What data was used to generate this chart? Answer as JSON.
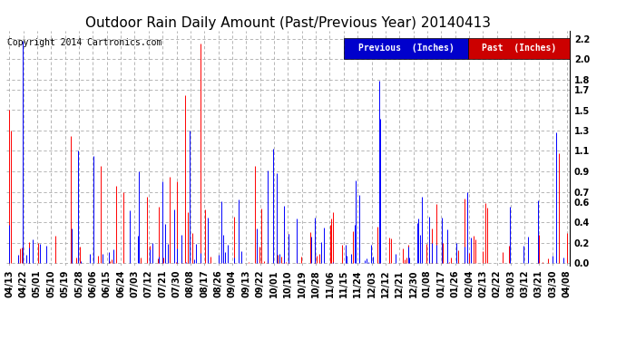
{
  "title": "Outdoor Rain Daily Amount (Past/Previous Year) 20140413",
  "copyright": "Copyright 2014 Cartronics.com",
  "legend": [
    "Previous  (Inches)",
    "Past  (Inches)"
  ],
  "legend_colors": [
    "#0000ff",
    "#ff0000"
  ],
  "legend_bg_prev": "#0000cc",
  "legend_bg_past": "#cc0000",
  "yticks": [
    0.0,
    0.2,
    0.4,
    0.6,
    0.7,
    0.9,
    1.1,
    1.3,
    1.5,
    1.7,
    1.8,
    2.0,
    2.2
  ],
  "ymax": 2.28,
  "ymin": -0.02,
  "xtick_labels": [
    "04/13",
    "04/22",
    "05/01",
    "05/10",
    "05/19",
    "05/28",
    "06/06",
    "06/15",
    "06/24",
    "07/03",
    "07/12",
    "07/21",
    "07/30",
    "08/08",
    "08/17",
    "08/26",
    "09/04",
    "09/13",
    "09/22",
    "10/01",
    "10/10",
    "10/19",
    "10/28",
    "11/06",
    "11/15",
    "11/24",
    "12/03",
    "12/12",
    "12/21",
    "12/30",
    "01/08",
    "01/17",
    "01/26",
    "02/04",
    "02/13",
    "02/22",
    "03/03",
    "03/12",
    "03/21",
    "03/30",
    "04/08"
  ],
  "background_color": "#ffffff",
  "plot_bg": "#ffffff",
  "grid_color": "#aaaaaa",
  "title_fontsize": 11,
  "tick_fontsize": 7,
  "copyright_fontsize": 7
}
